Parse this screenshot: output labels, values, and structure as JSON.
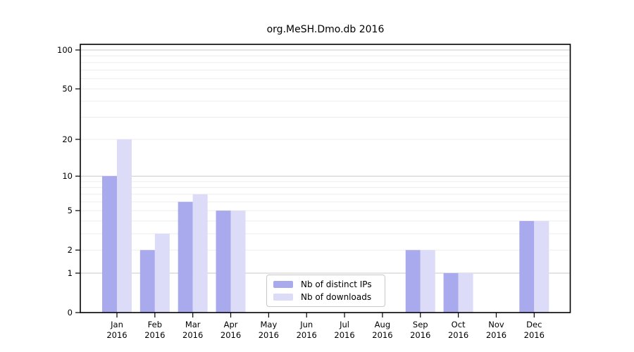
{
  "title": "org.MeSH.Dmo.db 2016",
  "colors": {
    "distinct_ips": "#a9a9ee",
    "downloads": "#dcdcf8",
    "grid_major": "#c9c9c9",
    "grid_minor": "#ededed",
    "axis": "#000000",
    "legend_border": "#c8c8c8",
    "background": "#ffffff"
  },
  "chart_data": {
    "type": "bar",
    "title": "org.MeSH.Dmo.db 2016",
    "categories": [
      "Jan",
      "Feb",
      "Mar",
      "Apr",
      "May",
      "Jun",
      "Jul",
      "Aug",
      "Sep",
      "Oct",
      "Nov",
      "Dec"
    ],
    "year": "2016",
    "series": [
      {
        "name": "Nb of distinct IPs",
        "color": "#a9a9ee",
        "values": [
          10,
          2,
          6,
          5,
          0,
          0,
          0,
          0,
          2,
          1,
          0,
          4
        ]
      },
      {
        "name": "Nb of downloads",
        "color": "#dcdcf8",
        "values": [
          20,
          3,
          7,
          5,
          0,
          0,
          0,
          0,
          2,
          1,
          0,
          4
        ]
      }
    ],
    "yscale": "log1p",
    "yticks": [
      0,
      1,
      2,
      5,
      10,
      20,
      50,
      100
    ],
    "grid_major_values": [
      1,
      10,
      100
    ],
    "grid_minor_values": [
      2,
      3,
      4,
      5,
      6,
      7,
      8,
      9,
      20,
      30,
      40,
      50,
      60,
      70,
      80,
      90
    ],
    "ylim": [
      0,
      113
    ],
    "xlabel": "",
    "ylabel": "",
    "grid": true,
    "legend_position": "bottom-center-inside"
  }
}
